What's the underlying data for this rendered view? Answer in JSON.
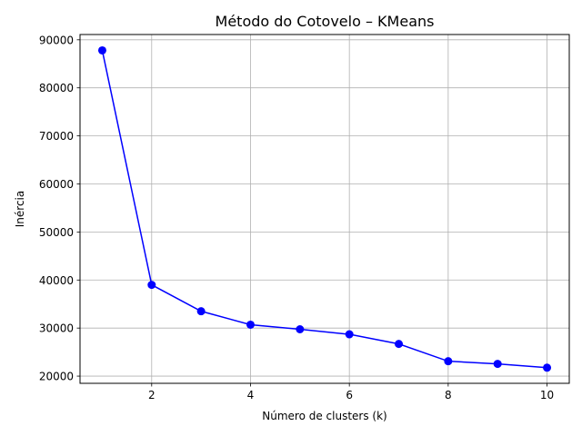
{
  "chart_data": {
    "type": "line",
    "title": "Método do Cotovelo – KMeans",
    "xlabel": "Número de clusters (k)",
    "ylabel": "Inércia",
    "x": [
      1,
      2,
      3,
      4,
      5,
      6,
      7,
      8,
      9,
      10
    ],
    "series": [
      {
        "values": [
          87800,
          39000,
          33500,
          30700,
          29750,
          28700,
          26700,
          23100,
          22550,
          21750
        ]
      }
    ],
    "xlim": [
      0.55,
      10.45
    ],
    "ylim": [
      18500,
      91100
    ],
    "xticks": [
      2,
      4,
      6,
      8,
      10
    ],
    "yticks": [
      20000,
      30000,
      40000,
      50000,
      60000,
      70000,
      80000,
      90000
    ],
    "grid": true,
    "marker": "circle",
    "line_color": "#0000ff"
  }
}
